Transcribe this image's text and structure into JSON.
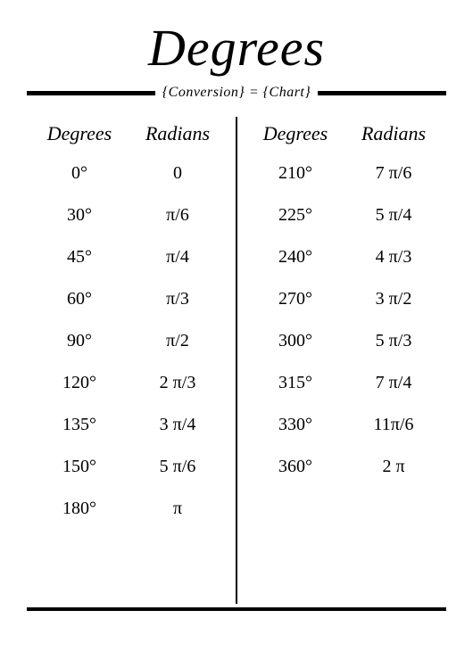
{
  "title": "Degrees",
  "subtitle": "{Conversion} = {Chart}",
  "headers": {
    "degrees": "Degrees",
    "radians": "Radians"
  },
  "left": [
    {
      "deg": "0°",
      "rad": "0"
    },
    {
      "deg": "30°",
      "rad": "π/6"
    },
    {
      "deg": "45°",
      "rad": "π/4"
    },
    {
      "deg": "60°",
      "rad": "π/3"
    },
    {
      "deg": "90°",
      "rad": "π/2"
    },
    {
      "deg": "120°",
      "rad": "2 π/3"
    },
    {
      "deg": "135°",
      "rad": "3 π/4"
    },
    {
      "deg": "150°",
      "rad": "5 π/6"
    },
    {
      "deg": "180°",
      "rad": "π"
    }
  ],
  "right": [
    {
      "deg": "210°",
      "rad": "7 π/6"
    },
    {
      "deg": "225°",
      "rad": "5 π/4"
    },
    {
      "deg": "240°",
      "rad": "4 π/3"
    },
    {
      "deg": "270°",
      "rad": "3 π/2"
    },
    {
      "deg": "300°",
      "rad": "5 π/3"
    },
    {
      "deg": "315°",
      "rad": "7 π/4"
    },
    {
      "deg": "330°",
      "rad": "11π/6"
    },
    {
      "deg": "360°",
      "rad": "2 π"
    }
  ],
  "style": {
    "background_color": "#ffffff",
    "text_color": "#000000",
    "rule_color": "#000000",
    "title_fontsize": 58,
    "subtitle_fontsize": 16,
    "header_fontsize": 22,
    "cell_fontsize": 20,
    "top_rule_height": 5,
    "bottom_rule_height": 4,
    "divider_width": 2,
    "row_gap": 24,
    "font_family": "Georgia, serif",
    "font_style": "italic-headers"
  }
}
